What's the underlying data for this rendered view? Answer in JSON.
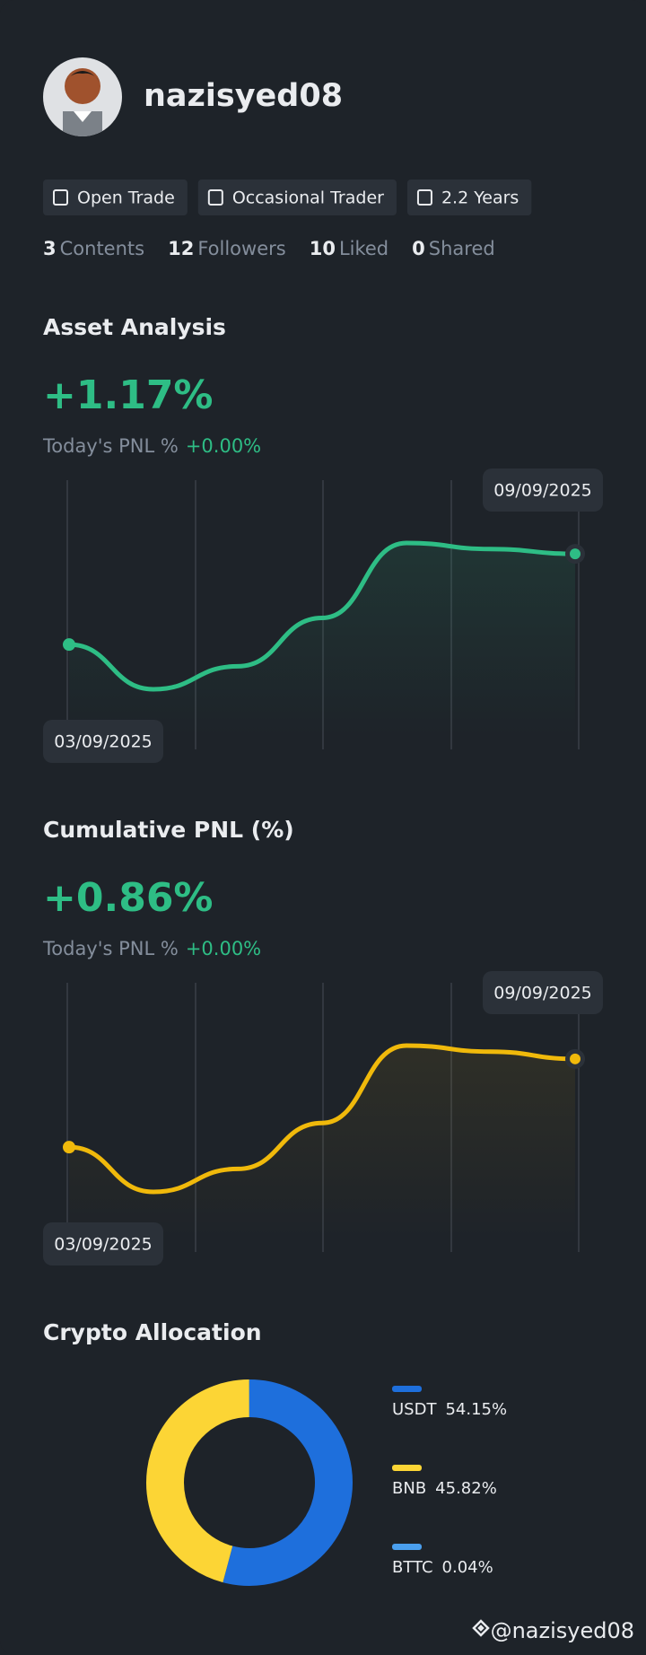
{
  "profile": {
    "username": "nazisyed08",
    "badges": [
      "Open Trade",
      "Occasional Trader",
      "2.2 Years"
    ],
    "stats": [
      {
        "value": 3,
        "label": "Contents"
      },
      {
        "value": 12,
        "label": "Followers"
      },
      {
        "value": 10,
        "label": "Liked"
      },
      {
        "value": 0,
        "label": "Shared"
      }
    ]
  },
  "charts": [
    {
      "type": "line",
      "title": "Asset Analysis",
      "headline": "+1.17%",
      "pnl_label": "Today's PNL %",
      "pnl_value": "+0.00%",
      "start_date": "03/09/2025",
      "end_date": "09/09/2025",
      "color": "#2ebd85",
      "values": [
        0,
        -0.37,
        -0.18,
        0.22,
        0.84,
        0.79,
        0.75
      ]
    },
    {
      "type": "line",
      "title": "Cumulative PNL (%)",
      "headline": "+0.86%",
      "pnl_label": "Today's PNL %",
      "pnl_value": "+0.00%",
      "start_date": "03/09/2025",
      "end_date": "09/09/2025",
      "color": "#f0b90b",
      "values": [
        0,
        -0.37,
        -0.18,
        0.2,
        0.84,
        0.79,
        0.73
      ]
    }
  ],
  "allocation": {
    "type": "pie",
    "title": "Crypto Allocation",
    "categories": [
      "USDT",
      "BNB",
      "BTTC"
    ],
    "values": [
      54.15,
      45.82,
      0.04
    ],
    "value_labels": [
      "54.15%",
      "45.82%",
      "0.04%"
    ],
    "colors": [
      "#1e6fdc",
      "#fcd535",
      "#4a9fee"
    ]
  },
  "watermark": "@nazisyed08"
}
